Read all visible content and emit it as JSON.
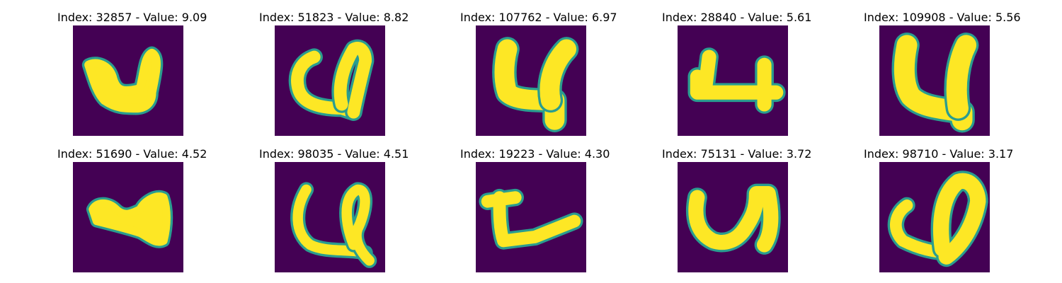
{
  "colors": {
    "background": "#440154",
    "foreground": "#fde725",
    "edge": "#2a9d8f"
  },
  "panels": [
    {
      "title": "Index: 32857 - Value: 9.09",
      "index": 32857,
      "value": 9.09,
      "glyph": "4-wide-squat"
    },
    {
      "title": "Index: 51823 - Value: 8.82",
      "index": 51823,
      "value": 8.82,
      "glyph": "4-hooked-left"
    },
    {
      "title": "Index: 107762 - Value: 6.97",
      "index": 107762,
      "value": 6.97,
      "glyph": "4-bold-tall"
    },
    {
      "title": "Index: 28840 - Value: 5.61",
      "index": 28840,
      "value": 5.61,
      "glyph": "4-flat-bracket"
    },
    {
      "title": "Index: 109908 - Value: 5.56",
      "index": 109908,
      "value": 5.56,
      "glyph": "4-bold-block"
    },
    {
      "title": "Index: 51690 - Value: 4.52",
      "index": 51690,
      "value": 4.52,
      "glyph": "4-small-blob"
    },
    {
      "title": "Index: 98035 - Value: 4.51",
      "index": 98035,
      "value": 4.51,
      "glyph": "4-loop-tail"
    },
    {
      "title": "Index: 19223 - Value: 4.30",
      "index": 19223,
      "value": 4.3,
      "glyph": "4-slanted-flat"
    },
    {
      "title": "Index: 75131 - Value: 3.72",
      "index": 75131,
      "value": 3.72,
      "glyph": "u-shape"
    },
    {
      "title": "Index: 98710 - Value: 3.17",
      "index": 98710,
      "value": 3.17,
      "glyph": "4-teardrop"
    }
  ]
}
